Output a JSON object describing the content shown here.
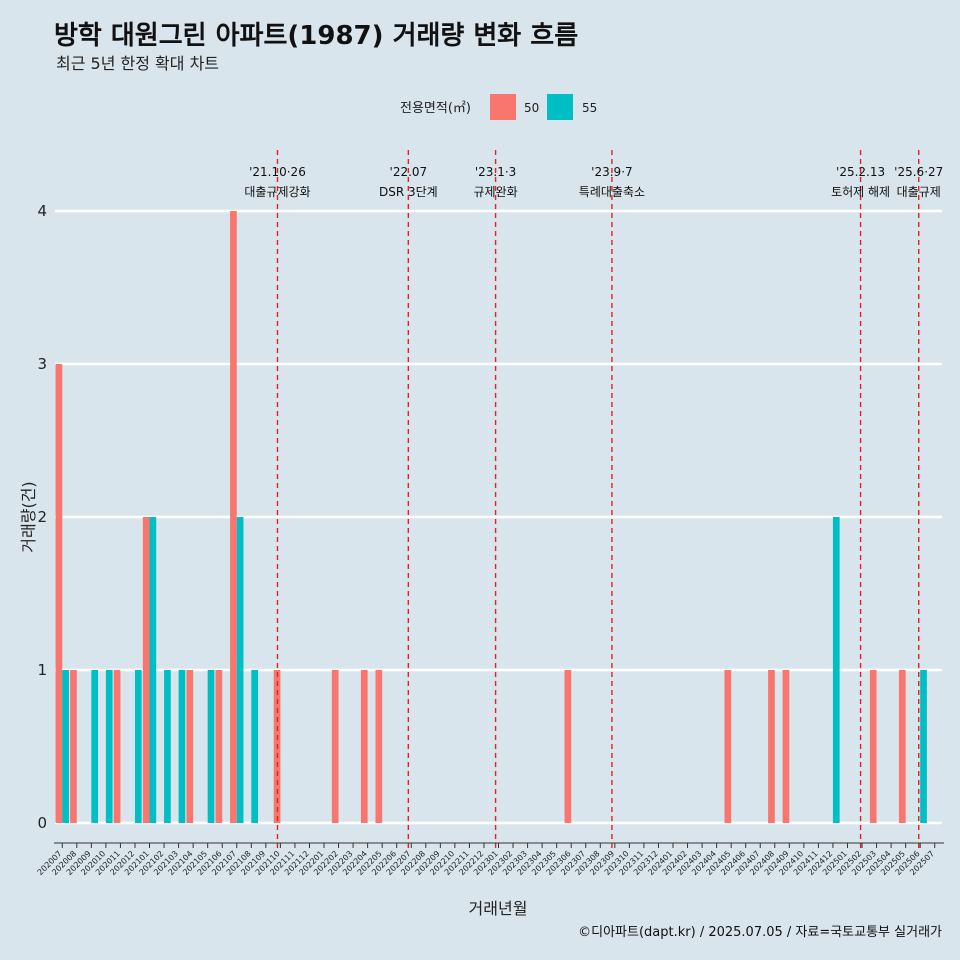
{
  "chart_data": {
    "type": "bar",
    "title": "방학 대원그린 아파트(1987) 거래량 변화 흐름",
    "subtitle": "최근 5년 한정 확대 차트",
    "xlabel": "거래년월",
    "ylabel": "거래량(건)",
    "ylim": [
      0,
      4
    ],
    "yticks": [
      "0",
      "1",
      "2",
      "3",
      "4"
    ],
    "legend": {
      "title": "전용면적(㎡)",
      "position": "top"
    },
    "categories": [
      "202007",
      "202008",
      "202009",
      "202010",
      "202011",
      "202012",
      "202101",
      "202102",
      "202103",
      "202104",
      "202105",
      "202106",
      "202107",
      "202108",
      "202109",
      "202110",
      "202111",
      "202112",
      "202201",
      "202202",
      "202203",
      "202204",
      "202205",
      "202206",
      "202207",
      "202208",
      "202209",
      "202210",
      "202211",
      "202212",
      "202301",
      "202302",
      "202303",
      "202304",
      "202305",
      "202306",
      "202307",
      "202308",
      "202309",
      "202310",
      "202311",
      "202312",
      "202401",
      "202402",
      "202403",
      "202404",
      "202405",
      "202406",
      "202407",
      "202408",
      "202409",
      "202410",
      "202411",
      "202412",
      "202501",
      "202502",
      "202503",
      "202504",
      "202505",
      "202506",
      "202507"
    ],
    "series": [
      {
        "name": "50",
        "color": "#F8766D",
        "values": [
          3,
          1,
          0,
          0,
          1,
          0,
          2,
          0,
          0,
          1,
          0,
          1,
          4,
          0,
          0,
          1,
          0,
          0,
          0,
          1,
          0,
          1,
          1,
          0,
          0,
          0,
          0,
          0,
          0,
          0,
          0,
          0,
          0,
          0,
          0,
          1,
          0,
          0,
          0,
          0,
          0,
          0,
          0,
          0,
          0,
          0,
          1,
          0,
          0,
          1,
          1,
          0,
          0,
          0,
          0,
          0,
          1,
          0,
          1,
          0,
          0
        ]
      },
      {
        "name": "55",
        "color": "#00BFC4",
        "values": [
          1,
          0,
          1,
          1,
          0,
          1,
          2,
          1,
          1,
          0,
          1,
          0,
          2,
          1,
          0,
          0,
          0,
          0,
          0,
          0,
          0,
          0,
          0,
          0,
          0,
          0,
          0,
          0,
          0,
          0,
          0,
          0,
          0,
          0,
          0,
          0,
          0,
          0,
          0,
          0,
          0,
          0,
          0,
          0,
          0,
          0,
          0,
          0,
          0,
          0,
          0,
          0,
          0,
          2,
          0,
          0,
          0,
          0,
          0,
          1,
          0
        ]
      }
    ],
    "events": [
      {
        "x": 15.3,
        "date": "'21.10·26",
        "label": "대출규제강화"
      },
      {
        "x": 24.3,
        "date": "'22.07",
        "label": "DSR 3단계"
      },
      {
        "x": 30.3,
        "date": "'23.1·3",
        "label": "규제완화"
      },
      {
        "x": 38.3,
        "date": "'23.9·7",
        "label": "특례대출축소"
      },
      {
        "x": 55.4,
        "date": "'25.2.13",
        "label": "토허제 해제"
      },
      {
        "x": 59.4,
        "date": "'25.6·27",
        "label": "대출규제"
      }
    ],
    "caption": "©디아파트(dapt.kr) / 2025.07.05 / 자료=국토교통부 실거래가"
  }
}
